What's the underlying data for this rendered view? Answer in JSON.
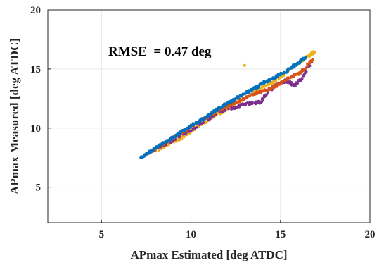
{
  "chart_data": {
    "type": "scatter",
    "title": "",
    "xlabel": "APmax Estimated [deg ATDC]",
    "ylabel": "APmax Measured [deg ATDC]",
    "xlim": [
      2,
      20
    ],
    "ylim": [
      2,
      20
    ],
    "xticks": [
      5,
      10,
      15,
      20
    ],
    "yticks": [
      5,
      10,
      15,
      20
    ],
    "grid": true,
    "annotation": "RMSE  = 0.47 deg",
    "colors": [
      "#0072BD",
      "#D95319",
      "#EDB120",
      "#7E2F8E"
    ],
    "series": [
      {
        "color": "#0072BD",
        "x": [
          7.2,
          7.6,
          8.0,
          8.4,
          8.8,
          9.2,
          9.6,
          10.0,
          10.4,
          10.8,
          11.2,
          11.6,
          12.0,
          12.4,
          12.8,
          13.2,
          13.6,
          14.0,
          14.4,
          14.8,
          15.2,
          15.6,
          16.0,
          16.4
        ],
        "y": [
          7.5,
          7.9,
          8.3,
          8.7,
          9.0,
          9.4,
          9.8,
          10.2,
          10.5,
          10.9,
          11.3,
          11.7,
          12.1,
          12.4,
          12.8,
          13.1,
          13.4,
          13.8,
          14.1,
          14.4,
          14.7,
          15.1,
          15.5,
          16.0
        ]
      },
      {
        "color": "#D95319",
        "x": [
          7.4,
          7.9,
          8.5,
          9.0,
          9.5,
          10.1,
          10.6,
          11.1,
          11.7,
          12.2,
          12.7,
          13.2,
          13.7,
          14.2,
          14.8,
          15.2,
          15.7,
          16.2,
          16.8
        ],
        "y": [
          7.7,
          8.1,
          8.7,
          9.2,
          9.6,
          10.2,
          10.7,
          11.1,
          11.6,
          12.0,
          12.3,
          12.7,
          13.0,
          13.2,
          13.6,
          14.0,
          14.4,
          14.8,
          15.8
        ]
      },
      {
        "color": "#EDB120",
        "x": [
          8.2,
          8.8,
          9.4,
          10.0,
          10.6,
          11.2,
          11.8,
          12.3,
          12.9,
          13.0,
          13.5,
          14.0,
          14.5,
          15.0,
          15.5,
          16.1,
          16.6,
          16.9
        ],
        "y": [
          8.1,
          8.7,
          9.1,
          9.7,
          10.3,
          10.9,
          11.4,
          11.9,
          12.4,
          15.3,
          12.9,
          13.5,
          13.8,
          14.3,
          15.0,
          15.6,
          16.1,
          16.4
        ]
      },
      {
        "color": "#7E2F8E",
        "x": [
          7.7,
          8.6,
          9.6,
          10.6,
          11.6,
          12.4,
          12.9,
          13.4,
          13.9,
          14.3,
          14.8,
          15.3,
          15.8,
          16.2,
          16.7
        ],
        "y": [
          8.0,
          8.6,
          9.5,
          10.4,
          11.4,
          11.7,
          12.0,
          12.1,
          12.2,
          13.1,
          13.7,
          14.0,
          13.6,
          14.2,
          15.6
        ]
      }
    ]
  }
}
